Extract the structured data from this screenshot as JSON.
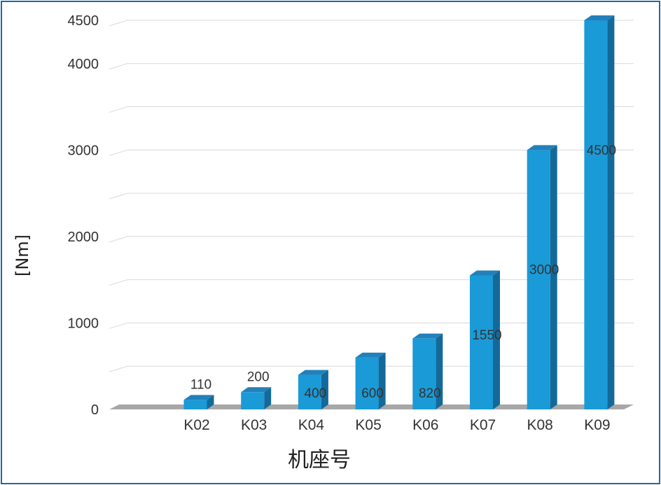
{
  "chart_data": {
    "type": "bar",
    "categories": [
      "K02",
      "K03",
      "K04",
      "K05",
      "K06",
      "K07",
      "K08",
      "K09"
    ],
    "values": [
      110,
      200,
      400,
      600,
      820,
      1550,
      3000,
      4500
    ],
    "data_labels": [
      "110",
      "200",
      "400",
      "600",
      "820",
      "1550",
      "3000",
      "4500"
    ],
    "title": "",
    "xlabel": "机座号",
    "ylabel": "[Nm]",
    "ylim": [
      0,
      4500
    ],
    "yticks": [
      0,
      1000,
      2000,
      3000,
      4000,
      4500
    ],
    "ytick_labels": [
      "0",
      "1000",
      "2000",
      "3000",
      "4000",
      "4500"
    ],
    "minor_gridlines": [
      500,
      1500,
      2500,
      3500
    ],
    "grid": true,
    "legend": "none",
    "bar_style": "3d",
    "colors": {
      "bar_front": "#1a9ad7",
      "bar_top": "#2380b9",
      "bar_side": "#13699a",
      "floor": "#a7a7a7",
      "grid": "#d9d9d9",
      "border": "#1f6aa8"
    }
  }
}
